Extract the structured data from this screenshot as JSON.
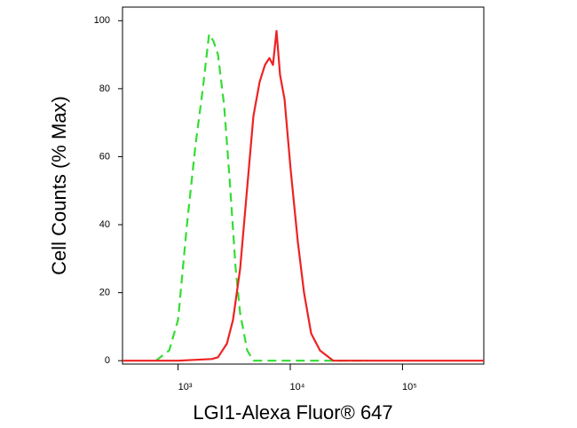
{
  "chart_data": {
    "type": "line",
    "x_label": "LGI1-Alexa Fluor® 647",
    "y_label": "Cell Counts (% Max)",
    "xscale": "log",
    "xlim": [
      320,
      530000
    ],
    "ylim": [
      -1,
      104
    ],
    "xticks": [
      {
        "value": 1000,
        "label": "10³"
      },
      {
        "value": 10000,
        "label": "10⁴"
      },
      {
        "value": 100000,
        "label": "10⁵"
      }
    ],
    "yticks": [
      0,
      20,
      40,
      60,
      80,
      100
    ],
    "series": [
      {
        "color": "#33dd33",
        "dashed": true,
        "x": [
          634,
          834,
          1000,
          1200,
          1439,
          1664,
          1891,
          2071,
          2270,
          2577,
          2873,
          3263,
          3573,
          4138,
          4700,
          10000,
          50000
        ],
        "values": [
          0,
          3,
          12,
          40,
          64,
          80,
          96,
          94,
          90,
          75,
          54,
          27,
          14,
          3,
          0,
          0,
          0
        ]
      },
      {
        "color": "#ee2222",
        "dashed": false,
        "x": [
          320,
          1000,
          2000,
          2270,
          2723,
          3091,
          3573,
          4138,
          4700,
          5335,
          5952,
          6520,
          7015,
          7540,
          8110,
          8890,
          10090,
          11670,
          13270,
          15350,
          18410,
          24170,
          38100,
          100000,
          530000
        ],
        "values": [
          0,
          0,
          0.5,
          1,
          5,
          12,
          27,
          51,
          72,
          82,
          87,
          89,
          87,
          97,
          84,
          77,
          56,
          35,
          20,
          8,
          3,
          0,
          0,
          0,
          0
        ]
      }
    ]
  }
}
